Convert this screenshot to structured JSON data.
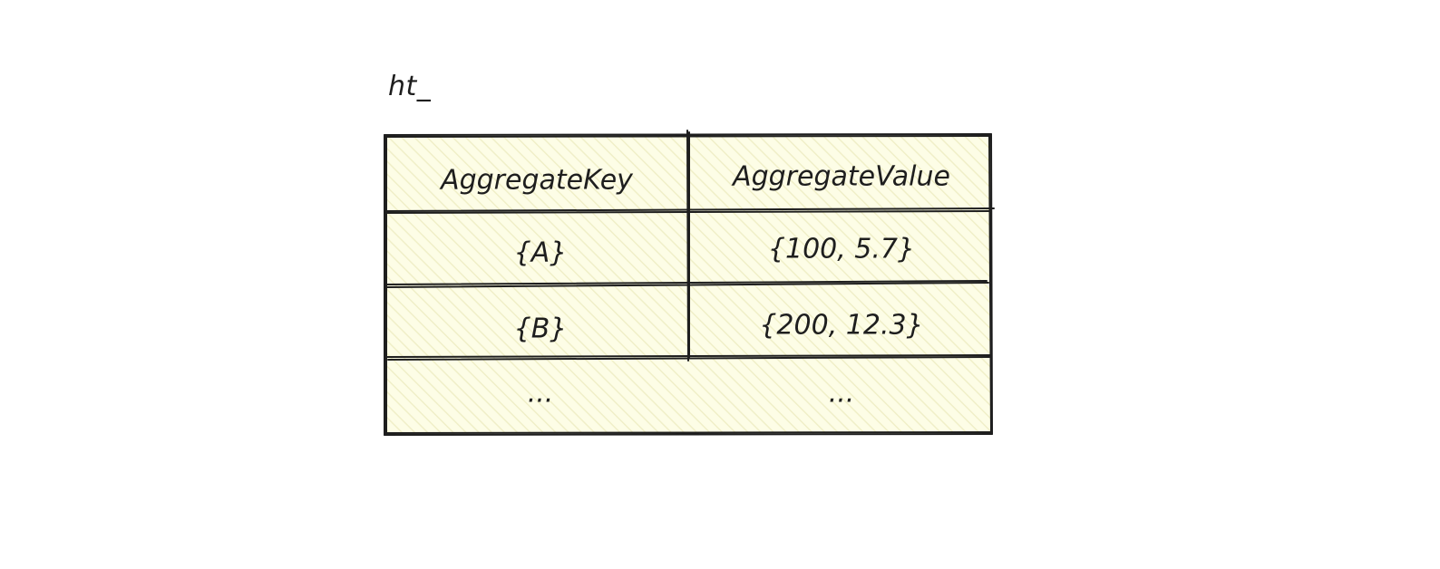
{
  "title": "ht_",
  "table": {
    "headers": [
      "AggregateKey",
      "AggregateValue"
    ],
    "rows": [
      [
        "{A}",
        "{100, 5.7}"
      ],
      [
        "{B}",
        "{200, 12.3}"
      ],
      [
        "...",
        "..."
      ]
    ]
  },
  "colors": {
    "fill": "#fdfde6",
    "hatch": "#f0efc8",
    "stroke": "#1e1e1e"
  }
}
